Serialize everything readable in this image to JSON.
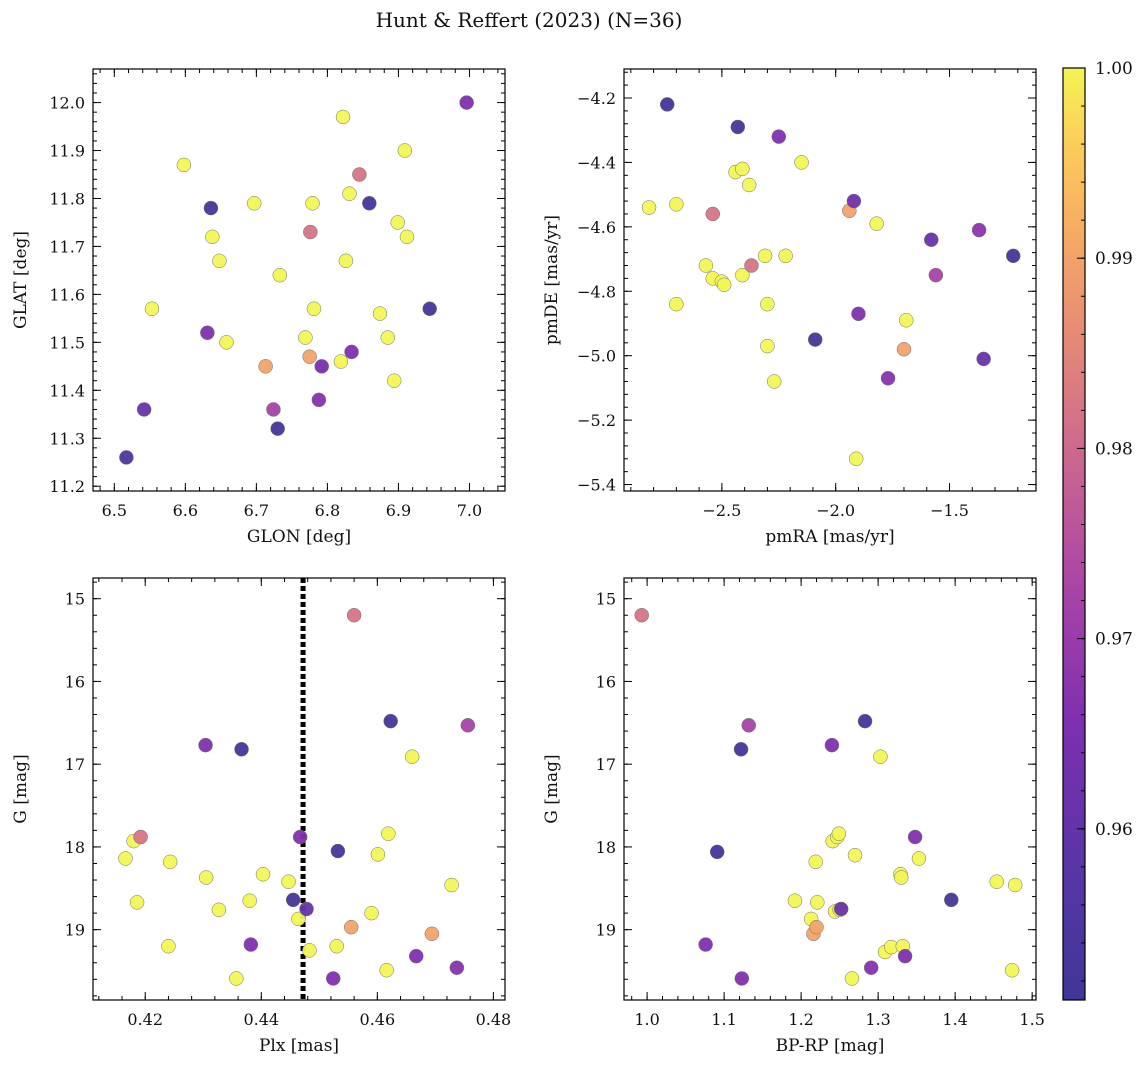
{
  "figure": {
    "title": "Hunt & Reffert (2023) (N=36)",
    "colormap": "plasma",
    "colorbar": {
      "range": [
        0.951,
        1.0
      ],
      "ticks": [
        0.96,
        0.97,
        0.98,
        0.99,
        1.0
      ],
      "tick_labels": [
        "0.96",
        "0.97",
        "0.98",
        "0.99",
        "1.00"
      ]
    }
  },
  "chart_data": [
    {
      "type": "scatter",
      "panel": "top-left",
      "xlabel": "GLON [deg]",
      "ylabel": "GLAT [deg]",
      "xlim": [
        6.47,
        7.05
      ],
      "ylim": [
        11.19,
        12.07
      ],
      "xticks": [
        6.5,
        6.6,
        6.7,
        6.8,
        6.9,
        7.0
      ],
      "xtick_labels": [
        "6.5",
        "6.6",
        "6.7",
        "6.8",
        "6.9",
        "7.0"
      ],
      "yticks": [
        11.2,
        11.3,
        11.4,
        11.5,
        11.6,
        11.7,
        11.8,
        11.9,
        12.0
      ],
      "ytick_labels": [
        "11.2",
        "11.3",
        "11.4",
        "11.5",
        "11.6",
        "11.7",
        "11.8",
        "11.9",
        "12.0"
      ],
      "points": [
        {
          "x": 6.517,
          "y": 11.26,
          "c": 0.955
        },
        {
          "x": 6.542,
          "y": 11.36,
          "c": 0.961
        },
        {
          "x": 6.553,
          "y": 11.57,
          "c": 1.0
        },
        {
          "x": 6.598,
          "y": 11.87,
          "c": 1.0
        },
        {
          "x": 6.631,
          "y": 11.52,
          "c": 0.966
        },
        {
          "x": 6.636,
          "y": 11.78,
          "c": 0.953
        },
        {
          "x": 6.638,
          "y": 11.72,
          "c": 1.0
        },
        {
          "x": 6.648,
          "y": 11.67,
          "c": 1.0
        },
        {
          "x": 6.658,
          "y": 11.5,
          "c": 1.0
        },
        {
          "x": 6.697,
          "y": 11.79,
          "c": 1.0
        },
        {
          "x": 6.713,
          "y": 11.45,
          "c": 0.99
        },
        {
          "x": 6.724,
          "y": 11.36,
          "c": 0.972
        },
        {
          "x": 6.73,
          "y": 11.32,
          "c": 0.953
        },
        {
          "x": 6.733,
          "y": 11.64,
          "c": 1.0
        },
        {
          "x": 6.769,
          "y": 11.51,
          "c": 1.0
        },
        {
          "x": 6.775,
          "y": 11.47,
          "c": 0.99
        },
        {
          "x": 6.776,
          "y": 11.73,
          "c": 0.982
        },
        {
          "x": 6.779,
          "y": 11.79,
          "c": 1.0
        },
        {
          "x": 6.781,
          "y": 11.57,
          "c": 1.0
        },
        {
          "x": 6.788,
          "y": 11.38,
          "c": 0.967
        },
        {
          "x": 6.792,
          "y": 11.45,
          "c": 0.964
        },
        {
          "x": 6.819,
          "y": 11.46,
          "c": 1.0
        },
        {
          "x": 6.822,
          "y": 11.97,
          "c": 1.0
        },
        {
          "x": 6.826,
          "y": 11.67,
          "c": 1.0
        },
        {
          "x": 6.831,
          "y": 11.81,
          "c": 1.0
        },
        {
          "x": 6.834,
          "y": 11.48,
          "c": 0.966
        },
        {
          "x": 6.845,
          "y": 11.85,
          "c": 0.982
        },
        {
          "x": 6.859,
          "y": 11.79,
          "c": 0.953
        },
        {
          "x": 6.874,
          "y": 11.56,
          "c": 1.0
        },
        {
          "x": 6.885,
          "y": 11.51,
          "c": 1.0
        },
        {
          "x": 6.894,
          "y": 11.42,
          "c": 1.0
        },
        {
          "x": 6.899,
          "y": 11.75,
          "c": 1.0
        },
        {
          "x": 6.909,
          "y": 11.9,
          "c": 1.0
        },
        {
          "x": 6.912,
          "y": 11.72,
          "c": 1.0
        },
        {
          "x": 6.944,
          "y": 11.57,
          "c": 0.953
        },
        {
          "x": 6.996,
          "y": 12.0,
          "c": 0.966
        }
      ]
    },
    {
      "type": "scatter",
      "panel": "top-right",
      "xlabel": "pmRA [mas/yr]",
      "ylabel": "pmDE [mas/yr]",
      "xlim": [
        -2.93,
        -1.12
      ],
      "ylim": [
        -5.42,
        -4.11
      ],
      "xticks": [
        -2.5,
        -2.0,
        -1.5
      ],
      "xtick_labels": [
        "−2.5",
        "−2.0",
        "−1.5"
      ],
      "yticks": [
        -5.4,
        -5.2,
        -5.0,
        -4.8,
        -4.6,
        -4.4,
        -4.2
      ],
      "ytick_labels": [
        "−5.4",
        "−5.2",
        "−5.0",
        "−4.8",
        "−4.6",
        "−4.4",
        "−4.2"
      ],
      "points": [
        {
          "x": -2.82,
          "y": -4.54,
          "c": 1.0
        },
        {
          "x": -2.74,
          "y": -4.22,
          "c": 0.953
        },
        {
          "x": -2.7,
          "y": -4.53,
          "c": 1.0
        },
        {
          "x": -2.7,
          "y": -4.84,
          "c": 1.0
        },
        {
          "x": -2.57,
          "y": -4.72,
          "c": 1.0
        },
        {
          "x": -2.54,
          "y": -4.56,
          "c": 0.982
        },
        {
          "x": -2.54,
          "y": -4.76,
          "c": 1.0
        },
        {
          "x": -2.5,
          "y": -4.77,
          "c": 1.0
        },
        {
          "x": -2.49,
          "y": -4.78,
          "c": 1.0
        },
        {
          "x": -2.44,
          "y": -4.43,
          "c": 1.0
        },
        {
          "x": -2.43,
          "y": -4.29,
          "c": 0.953
        },
        {
          "x": -2.41,
          "y": -4.42,
          "c": 1.0
        },
        {
          "x": -2.41,
          "y": -4.75,
          "c": 1.0
        },
        {
          "x": -2.38,
          "y": -4.47,
          "c": 1.0
        },
        {
          "x": -2.37,
          "y": -4.72,
          "c": 0.982
        },
        {
          "x": -2.31,
          "y": -4.69,
          "c": 1.0
        },
        {
          "x": -2.3,
          "y": -4.84,
          "c": 1.0
        },
        {
          "x": -2.3,
          "y": -4.97,
          "c": 1.0
        },
        {
          "x": -2.27,
          "y": -5.08,
          "c": 1.0
        },
        {
          "x": -2.25,
          "y": -4.32,
          "c": 0.966
        },
        {
          "x": -2.22,
          "y": -4.69,
          "c": 1.0
        },
        {
          "x": -2.15,
          "y": -4.4,
          "c": 1.0
        },
        {
          "x": -2.09,
          "y": -4.95,
          "c": 0.953
        },
        {
          "x": -1.94,
          "y": -4.55,
          "c": 0.99
        },
        {
          "x": -1.92,
          "y": -4.52,
          "c": 0.963
        },
        {
          "x": -1.91,
          "y": -5.32,
          "c": 1.0
        },
        {
          "x": -1.9,
          "y": -4.87,
          "c": 0.966
        },
        {
          "x": -1.82,
          "y": -4.59,
          "c": 1.0
        },
        {
          "x": -1.77,
          "y": -5.07,
          "c": 0.967
        },
        {
          "x": -1.7,
          "y": -4.98,
          "c": 0.99
        },
        {
          "x": -1.69,
          "y": -4.89,
          "c": 1.0
        },
        {
          "x": -1.58,
          "y": -4.64,
          "c": 0.961
        },
        {
          "x": -1.56,
          "y": -4.75,
          "c": 0.972
        },
        {
          "x": -1.37,
          "y": -4.61,
          "c": 0.968
        },
        {
          "x": -1.35,
          "y": -5.01,
          "c": 0.961
        },
        {
          "x": -1.22,
          "y": -4.69,
          "c": 0.953
        }
      ]
    },
    {
      "type": "scatter",
      "panel": "bottom-left",
      "xlabel": "Plx [mas]",
      "ylabel": "G [mag]",
      "xlim": [
        0.411,
        0.482
      ],
      "ylim": [
        19.85,
        14.75
      ],
      "y_inverted": true,
      "vline": {
        "x": 0.4472,
        "style": "dotted",
        "color": "#000000"
      },
      "xticks": [
        0.42,
        0.44,
        0.46,
        0.48
      ],
      "xtick_labels": [
        "0.42",
        "0.44",
        "0.46",
        "0.48"
      ],
      "yticks": [
        15,
        16,
        17,
        18,
        19
      ],
      "ytick_labels": [
        "15",
        "16",
        "17",
        "18",
        "19"
      ],
      "points": [
        {
          "x": 0.4166,
          "y": 18.14,
          "c": 1.0
        },
        {
          "x": 0.418,
          "y": 17.93,
          "c": 1.0
        },
        {
          "x": 0.4186,
          "y": 18.67,
          "c": 1.0
        },
        {
          "x": 0.4192,
          "y": 17.88,
          "c": 0.982
        },
        {
          "x": 0.424,
          "y": 19.2,
          "c": 1.0
        },
        {
          "x": 0.4243,
          "y": 18.18,
          "c": 1.0
        },
        {
          "x": 0.4304,
          "y": 16.77,
          "c": 0.966
        },
        {
          "x": 0.4305,
          "y": 18.37,
          "c": 1.0
        },
        {
          "x": 0.4327,
          "y": 18.76,
          "c": 1.0
        },
        {
          "x": 0.4357,
          "y": 19.59,
          "c": 1.0
        },
        {
          "x": 0.4366,
          "y": 16.82,
          "c": 0.953
        },
        {
          "x": 0.438,
          "y": 18.65,
          "c": 1.0
        },
        {
          "x": 0.4382,
          "y": 19.18,
          "c": 0.966
        },
        {
          "x": 0.4403,
          "y": 18.33,
          "c": 1.0
        },
        {
          "x": 0.4447,
          "y": 18.42,
          "c": 1.0
        },
        {
          "x": 0.4455,
          "y": 18.64,
          "c": 0.953
        },
        {
          "x": 0.4464,
          "y": 18.87,
          "c": 1.0
        },
        {
          "x": 0.4467,
          "y": 17.88,
          "c": 0.966
        },
        {
          "x": 0.4478,
          "y": 18.75,
          "c": 0.961
        },
        {
          "x": 0.4483,
          "y": 19.25,
          "c": 1.0
        },
        {
          "x": 0.4524,
          "y": 19.59,
          "c": 0.966
        },
        {
          "x": 0.453,
          "y": 19.2,
          "c": 1.0
        },
        {
          "x": 0.4532,
          "y": 18.05,
          "c": 0.953
        },
        {
          "x": 0.4555,
          "y": 18.97,
          "c": 0.99
        },
        {
          "x": 0.456,
          "y": 15.2,
          "c": 0.982
        },
        {
          "x": 0.459,
          "y": 18.8,
          "c": 1.0
        },
        {
          "x": 0.4601,
          "y": 18.09,
          "c": 1.0
        },
        {
          "x": 0.4616,
          "y": 19.49,
          "c": 1.0
        },
        {
          "x": 0.4619,
          "y": 17.84,
          "c": 1.0
        },
        {
          "x": 0.4623,
          "y": 16.48,
          "c": 0.953
        },
        {
          "x": 0.466,
          "y": 16.91,
          "c": 1.0
        },
        {
          "x": 0.4667,
          "y": 19.32,
          "c": 0.966
        },
        {
          "x": 0.4694,
          "y": 19.05,
          "c": 0.99
        },
        {
          "x": 0.4728,
          "y": 18.46,
          "c": 1.0
        },
        {
          "x": 0.4737,
          "y": 19.46,
          "c": 0.967
        },
        {
          "x": 0.4756,
          "y": 16.53,
          "c": 0.972
        }
      ]
    },
    {
      "type": "scatter",
      "panel": "bottom-right",
      "xlabel": "BP-RP [mag]",
      "ylabel": "G [mag]",
      "xlim": [
        0.97,
        1.505
      ],
      "ylim": [
        19.85,
        14.75
      ],
      "y_inverted": true,
      "xticks": [
        1.0,
        1.1,
        1.2,
        1.3,
        1.4,
        1.5
      ],
      "xtick_labels": [
        "1.0",
        "1.1",
        "1.2",
        "1.3",
        "1.4",
        "1.5"
      ],
      "yticks": [
        15,
        16,
        17,
        18,
        19
      ],
      "ytick_labels": [
        "15",
        "16",
        "17",
        "18",
        "19"
      ],
      "points": [
        {
          "x": 0.993,
          "y": 15.2,
          "c": 0.982
        },
        {
          "x": 1.076,
          "y": 19.18,
          "c": 0.966
        },
        {
          "x": 1.091,
          "y": 18.06,
          "c": 0.953
        },
        {
          "x": 1.122,
          "y": 16.82,
          "c": 0.953
        },
        {
          "x": 1.123,
          "y": 19.59,
          "c": 0.966
        },
        {
          "x": 1.132,
          "y": 16.53,
          "c": 0.972
        },
        {
          "x": 1.192,
          "y": 18.65,
          "c": 1.0
        },
        {
          "x": 1.213,
          "y": 18.87,
          "c": 1.0
        },
        {
          "x": 1.216,
          "y": 19.05,
          "c": 0.99
        },
        {
          "x": 1.219,
          "y": 18.18,
          "c": 1.0
        },
        {
          "x": 1.22,
          "y": 18.97,
          "c": 0.99
        },
        {
          "x": 1.221,
          "y": 18.67,
          "c": 1.0
        },
        {
          "x": 1.24,
          "y": 16.77,
          "c": 0.966
        },
        {
          "x": 1.241,
          "y": 17.93,
          "c": 1.0
        },
        {
          "x": 1.244,
          "y": 18.78,
          "c": 1.0
        },
        {
          "x": 1.247,
          "y": 17.88,
          "c": 1.0
        },
        {
          "x": 1.249,
          "y": 17.84,
          "c": 1.0
        },
        {
          "x": 1.25,
          "y": 18.76,
          "c": 1.0
        },
        {
          "x": 1.252,
          "y": 18.75,
          "c": 0.961
        },
        {
          "x": 1.266,
          "y": 19.59,
          "c": 1.0
        },
        {
          "x": 1.27,
          "y": 18.1,
          "c": 1.0
        },
        {
          "x": 1.283,
          "y": 16.48,
          "c": 0.953
        },
        {
          "x": 1.291,
          "y": 19.46,
          "c": 0.967
        },
        {
          "x": 1.303,
          "y": 16.91,
          "c": 1.0
        },
        {
          "x": 1.309,
          "y": 19.27,
          "c": 1.0
        },
        {
          "x": 1.317,
          "y": 19.21,
          "c": 1.0
        },
        {
          "x": 1.329,
          "y": 18.33,
          "c": 1.0
        },
        {
          "x": 1.33,
          "y": 18.37,
          "c": 1.0
        },
        {
          "x": 1.332,
          "y": 19.2,
          "c": 1.0
        },
        {
          "x": 1.335,
          "y": 19.32,
          "c": 0.966
        },
        {
          "x": 1.348,
          "y": 17.88,
          "c": 0.966
        },
        {
          "x": 1.353,
          "y": 18.14,
          "c": 1.0
        },
        {
          "x": 1.395,
          "y": 18.64,
          "c": 0.953
        },
        {
          "x": 1.454,
          "y": 18.42,
          "c": 1.0
        },
        {
          "x": 1.474,
          "y": 19.49,
          "c": 1.0
        },
        {
          "x": 1.478,
          "y": 18.46,
          "c": 1.0
        }
      ]
    }
  ]
}
